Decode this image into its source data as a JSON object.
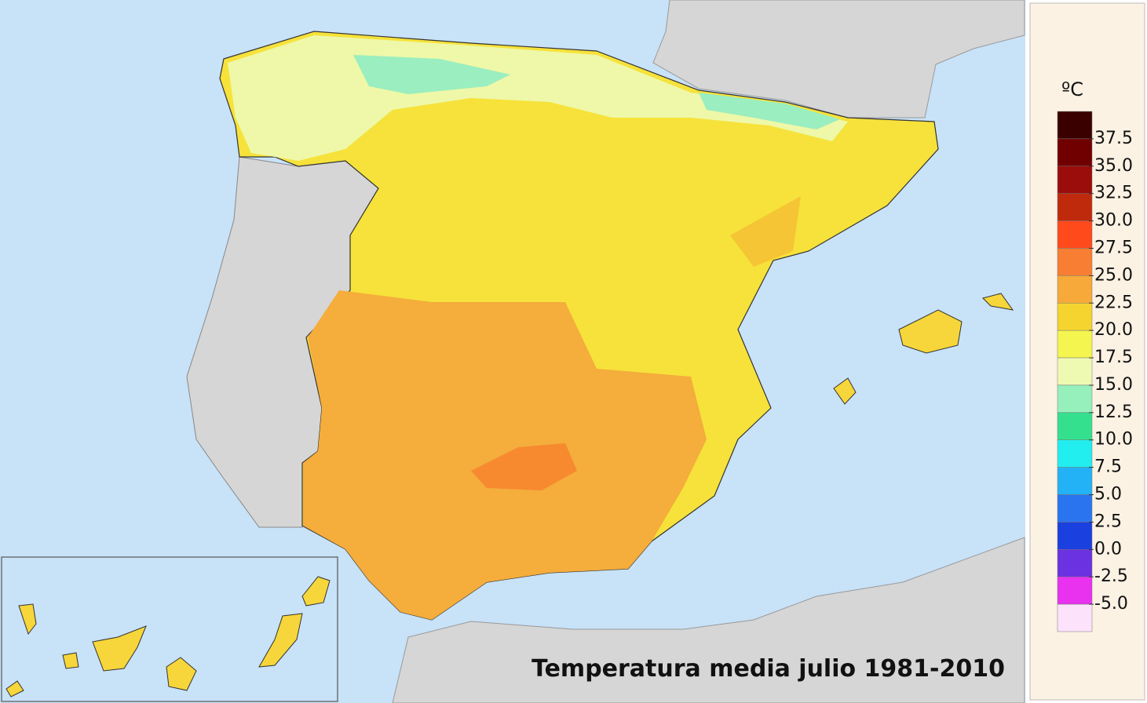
{
  "title": "Temperatura media julio 1981-2010",
  "legend": {
    "unit": "ºC",
    "ticks": [
      37.5,
      {
        "value": 35,
        "label": "35.0"
      },
      32.5,
      {
        "value": 30,
        "label": "30.0"
      },
      27.5,
      {
        "value": 25,
        "label": "25.0"
      },
      22.5,
      {
        "value": 20,
        "label": "20.0"
      },
      17.5,
      {
        "value": 15,
        "label": "15.0"
      },
      12.5,
      {
        "value": 10,
        "label": "10.0"
      },
      7.5,
      {
        "value": 5,
        "label": "5.0"
      },
      2.5,
      {
        "value": 0,
        "label": "0.0"
      },
      -2.5,
      {
        "value": -5,
        "label": "-5.0"
      }
    ],
    "colors": [
      "#3a0000",
      "#700000",
      "#9a0d0a",
      "#c02a0c",
      "#ff4a1c",
      "#f77e32",
      "#f7aa3a",
      "#f5d430",
      "#f5f550",
      "#eefab2",
      "#96f0bc",
      "#34e08e",
      "#22eef0",
      "#22b2f5",
      "#2a74f0",
      "#1a40e0",
      "#6a32e0",
      "#e832f0",
      "#fde2fc"
    ]
  }
}
